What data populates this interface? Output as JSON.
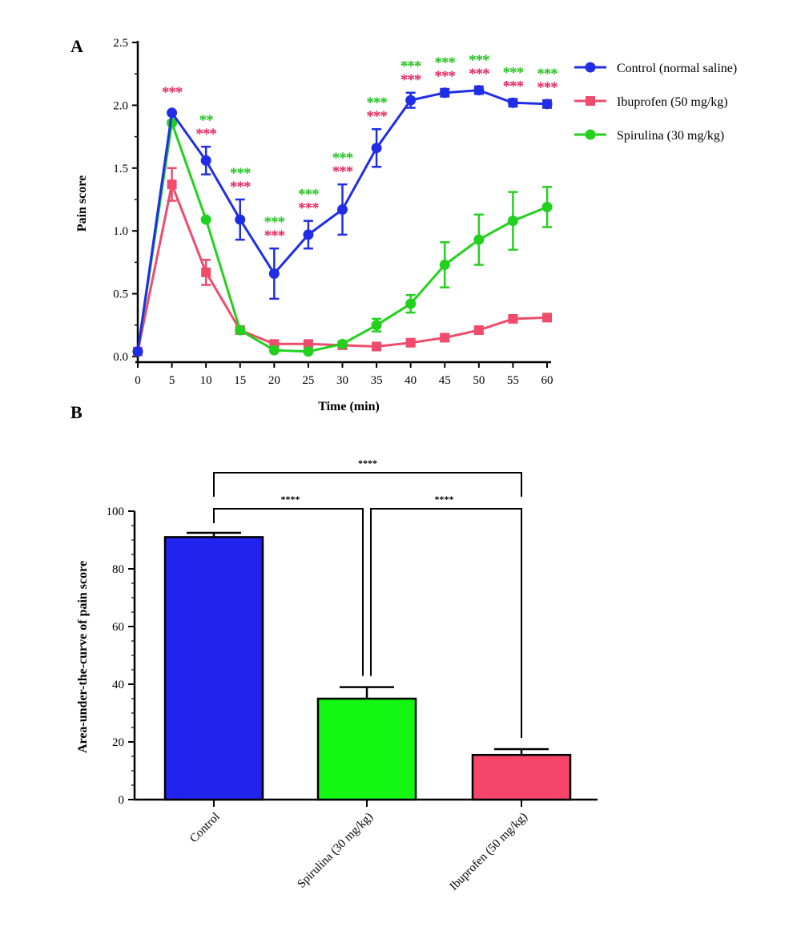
{
  "figure": {
    "panel_a_letter": "A",
    "panel_b_letter": "B"
  },
  "chart_data": [
    {
      "type": "line",
      "panel": "A",
      "xlabel": "Time (min)",
      "ylabel": "Pain score",
      "x": [
        0,
        5,
        10,
        15,
        20,
        25,
        30,
        35,
        40,
        45,
        50,
        55,
        60
      ],
      "xticks": [
        "0",
        "5",
        "10",
        "15",
        "20",
        "25",
        "30",
        "35",
        "40",
        "45",
        "50",
        "55",
        "60"
      ],
      "yticks": [
        "0.0",
        "0.5",
        "1.0",
        "1.5",
        "2.0",
        "2.5"
      ],
      "ylim": [
        0,
        2.5
      ],
      "legend_position": "right",
      "series": [
        {
          "name": "Control (normal saline)",
          "color": "#1f2ee6",
          "marker": "circle",
          "values": [
            0.04,
            1.94,
            1.56,
            1.09,
            0.66,
            0.97,
            1.17,
            1.66,
            2.04,
            2.1,
            2.12,
            2.02,
            2.01
          ],
          "errors": [
            0,
            0,
            0.11,
            0.16,
            0.2,
            0.11,
            0.2,
            0.15,
            0.06,
            0.03,
            0.03,
            0.03,
            0.03
          ]
        },
        {
          "name": "Ibuprofen (50 mg/kg)",
          "color": "#ef4c6c",
          "marker": "square",
          "values": [
            0.04,
            1.37,
            0.67,
            0.21,
            0.1,
            0.1,
            0.09,
            0.08,
            0.11,
            0.15,
            0.21,
            0.3,
            0.31
          ],
          "errors": [
            0,
            0.13,
            0.1,
            0.03,
            0.02,
            0.02,
            0.02,
            0.02,
            0.02,
            0.02,
            0.02,
            0.02,
            0.02
          ]
        },
        {
          "name": "Spirulina (30 mg/kg)",
          "color": "#22d11e",
          "marker": "circle",
          "values": [
            0.04,
            1.86,
            1.09,
            0.21,
            0.05,
            0.04,
            0.1,
            0.25,
            0.42,
            0.73,
            0.93,
            1.08,
            1.19
          ],
          "errors": [
            0,
            0,
            0,
            0,
            0,
            0,
            0,
            0.05,
            0.07,
            0.18,
            0.2,
            0.23,
            0.16
          ]
        }
      ],
      "annotations": [
        {
          "x": 5,
          "color": "#e8235a",
          "text": "***",
          "row": "upper-single"
        },
        {
          "x": 10,
          "color": "#22c21e",
          "text": "**",
          "row": "green"
        },
        {
          "x": 10,
          "color": "#e8235a",
          "text": "***",
          "row": "red"
        },
        {
          "x": 15,
          "color": "#22c21e",
          "text": "***",
          "row": "green"
        },
        {
          "x": 15,
          "color": "#e8235a",
          "text": "***",
          "row": "red"
        },
        {
          "x": 20,
          "color": "#22c21e",
          "text": "***",
          "row": "green"
        },
        {
          "x": 20,
          "color": "#e8235a",
          "text": "***",
          "row": "red"
        },
        {
          "x": 25,
          "color": "#22c21e",
          "text": "***",
          "row": "green"
        },
        {
          "x": 25,
          "color": "#e8235a",
          "text": "***",
          "row": "red"
        },
        {
          "x": 30,
          "color": "#22c21e",
          "text": "***",
          "row": "green"
        },
        {
          "x": 30,
          "color": "#e8235a",
          "text": "***",
          "row": "red"
        },
        {
          "x": 35,
          "color": "#22c21e",
          "text": "***",
          "row": "green"
        },
        {
          "x": 35,
          "color": "#e8235a",
          "text": "***",
          "row": "red"
        },
        {
          "x": 40,
          "color": "#22c21e",
          "text": "***",
          "row": "green"
        },
        {
          "x": 40,
          "color": "#e8235a",
          "text": "***",
          "row": "red"
        },
        {
          "x": 45,
          "color": "#22c21e",
          "text": "***",
          "row": "green"
        },
        {
          "x": 45,
          "color": "#e8235a",
          "text": "***",
          "row": "red"
        },
        {
          "x": 50,
          "color": "#22c21e",
          "text": "***",
          "row": "green"
        },
        {
          "x": 50,
          "color": "#e8235a",
          "text": "***",
          "row": "red"
        },
        {
          "x": 55,
          "color": "#22c21e",
          "text": "***",
          "row": "green"
        },
        {
          "x": 55,
          "color": "#e8235a",
          "text": "***",
          "row": "red"
        },
        {
          "x": 60,
          "color": "#22c21e",
          "text": "***",
          "row": "green"
        },
        {
          "x": 60,
          "color": "#e8235a",
          "text": "***",
          "row": "red"
        }
      ]
    },
    {
      "type": "bar",
      "panel": "B",
      "ylabel": "Area-under-the-curve of pain score",
      "categories": [
        "Control",
        "Spirulina (30 mg/kg)",
        "Ibuprofen (50 mg/kg)"
      ],
      "values": [
        91,
        35,
        15.5
      ],
      "errors": [
        1.5,
        4,
        2
      ],
      "colors": [
        "#2323ef",
        "#13f713",
        "#f5466a"
      ],
      "ylim": [
        0,
        100
      ],
      "yticks": [
        "0",
        "20",
        "40",
        "60",
        "80",
        "100"
      ],
      "comparisons": [
        {
          "from": 0,
          "to": 1,
          "label": "****",
          "level": "low"
        },
        {
          "from": 1,
          "to": 2,
          "label": "****",
          "level": "low"
        },
        {
          "from": 0,
          "to": 2,
          "label": "****",
          "level": "high"
        }
      ]
    }
  ]
}
